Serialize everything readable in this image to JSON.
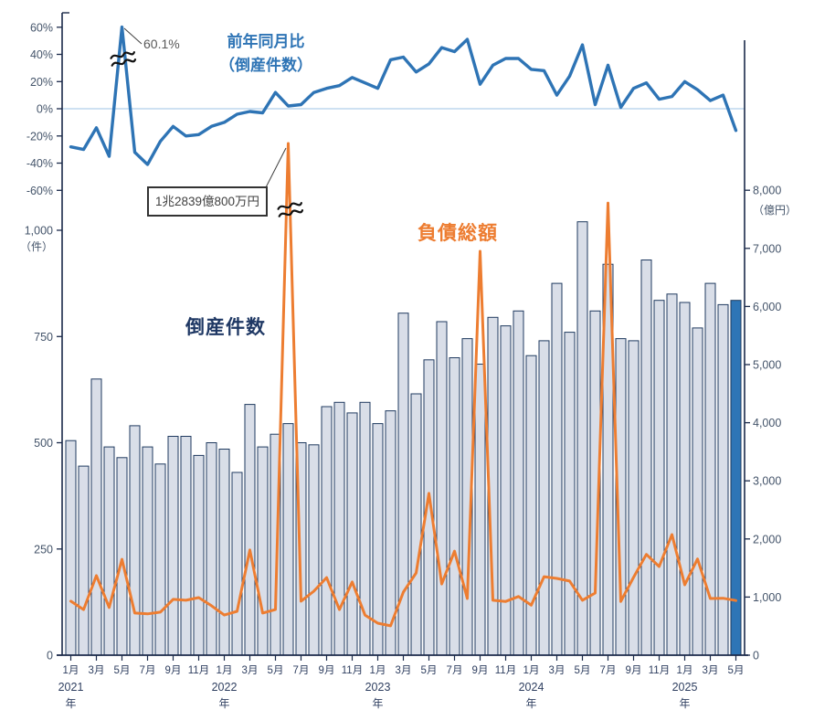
{
  "annotations": {
    "yoy_label_line1": "前年同月比",
    "yoy_label_line2": "（倒産件数）",
    "yoy_spike_label": "60.1%",
    "bankruptcy_count_label": "倒産件数",
    "liabilities_label": "負債総額",
    "liabilities_note": "1兆2839億800万円"
  },
  "axes": {
    "left_percent_ticks": [
      {
        "label": "60%",
        "value": 60
      },
      {
        "label": "40%",
        "value": 40
      },
      {
        "label": "20%",
        "value": 20
      },
      {
        "label": "0%",
        "value": 0
      },
      {
        "label": "-20%",
        "value": -20
      },
      {
        "label": "-40%",
        "value": -40
      },
      {
        "label": "-60%",
        "value": -60
      }
    ],
    "left_count_ticks": [
      {
        "label": "1,000",
        "value": 1000
      },
      {
        "label": "750",
        "value": 750
      },
      {
        "label": "500",
        "value": 500
      },
      {
        "label": "250",
        "value": 250
      },
      {
        "label": "0",
        "value": 0
      }
    ],
    "left_count_unit": "（件）",
    "right_amount_ticks": [
      {
        "label": "8,000",
        "value": 8000
      },
      {
        "label": "7,000",
        "value": 7000
      },
      {
        "label": "6,000",
        "value": 6000
      },
      {
        "label": "5,000",
        "value": 5000
      },
      {
        "label": "4,000",
        "value": 4000
      },
      {
        "label": "3,000",
        "value": 3000
      },
      {
        "label": "2,000",
        "value": 2000
      },
      {
        "label": "1,000",
        "value": 1000
      },
      {
        "label": "0",
        "value": 0
      }
    ],
    "right_amount_unit": "（億円）",
    "x_tick_labels": [
      "1月",
      "3月",
      "5月",
      "7月",
      "9月",
      "11月",
      "1月",
      "3月",
      "5月",
      "7月",
      "9月",
      "11月",
      "1月",
      "3月",
      "5月",
      "7月",
      "9月",
      "11月",
      "1月",
      "3月",
      "5月",
      "7月",
      "9月",
      "11月",
      "1月",
      "3月",
      "5月"
    ],
    "year_labels": [
      {
        "label": "2021",
        "unit": "年",
        "month_index": 0
      },
      {
        "label": "2022",
        "unit": "年",
        "month_index": 12
      },
      {
        "label": "2023",
        "unit": "年",
        "month_index": 24
      },
      {
        "label": "2024",
        "unit": "年",
        "month_index": 36
      },
      {
        "label": "2025",
        "unit": "年",
        "month_index": 48
      }
    ]
  },
  "colors": {
    "bar_fill": "#d9dee8",
    "bar_stroke": "#1f3a5f",
    "bar_highlight_fill": "#2e75b6",
    "yoy_line": "#2e74b5",
    "liabilities_line": "#ed7d31",
    "zero_line": "#bdd7ee",
    "axis": "#1b2a4a",
    "tick_text": "#44546a",
    "month_text": "#2f3f60"
  },
  "chart_data": {
    "type": "combo: bar + 2 lines",
    "categories": [
      "2021-01",
      "2021-02",
      "2021-03",
      "2021-04",
      "2021-05",
      "2021-06",
      "2021-07",
      "2021-08",
      "2021-09",
      "2021-10",
      "2021-11",
      "2021-12",
      "2022-01",
      "2022-02",
      "2022-03",
      "2022-04",
      "2022-05",
      "2022-06",
      "2022-07",
      "2022-08",
      "2022-09",
      "2022-10",
      "2022-11",
      "2022-12",
      "2023-01",
      "2023-02",
      "2023-03",
      "2023-04",
      "2023-05",
      "2023-06",
      "2023-07",
      "2023-08",
      "2023-09",
      "2023-10",
      "2023-11",
      "2023-12",
      "2024-01",
      "2024-02",
      "2024-03",
      "2024-04",
      "2024-05",
      "2024-06",
      "2024-07",
      "2024-08",
      "2024-09",
      "2024-10",
      "2024-11",
      "2024-12",
      "2025-01",
      "2025-02",
      "2025-03",
      "2025-04",
      "2025-05"
    ],
    "series": [
      {
        "name": "倒産件数",
        "type": "bar",
        "yaxis": "left_count",
        "unit": "件",
        "highlight_last": true,
        "values": [
          505,
          445,
          650,
          490,
          465,
          540,
          490,
          450,
          515,
          515,
          470,
          500,
          485,
          430,
          590,
          490,
          520,
          545,
          500,
          495,
          585,
          595,
          570,
          595,
          545,
          575,
          805,
          615,
          695,
          785,
          700,
          745,
          685,
          795,
          775,
          810,
          705,
          740,
          875,
          760,
          1020,
          810,
          920,
          745,
          740,
          930,
          835,
          850,
          830,
          770,
          875,
          825,
          835
        ]
      },
      {
        "name": "負債総額",
        "type": "line",
        "yaxis": "right_amount",
        "unit": "億円",
        "clipped_peak": "2022-06",
        "values": [
          930,
          785,
          1370,
          820,
          1650,
          725,
          710,
          740,
          960,
          945,
          990,
          850,
          690,
          755,
          1810,
          725,
          785,
          12839,
          930,
          1100,
          1335,
          785,
          1260,
          690,
          550,
          505,
          1085,
          1415,
          2785,
          1225,
          1790,
          975,
          6950,
          945,
          925,
          1010,
          860,
          1350,
          1320,
          1275,
          945,
          1070,
          7780,
          925,
          1340,
          1735,
          1525,
          2075,
          1210,
          1655,
          975,
          980,
          940
        ]
      },
      {
        "name": "前年同月比",
        "type": "line",
        "yaxis": "left_percent",
        "unit": "%",
        "annotated_peak": "2021-05",
        "values": [
          -28,
          -30,
          -14,
          -35,
          60.1,
          -32,
          -41,
          -24,
          -13,
          -20,
          -19,
          -13,
          -10,
          -4,
          -2,
          -3,
          12,
          2,
          3,
          12,
          15,
          17,
          23,
          19,
          15,
          36,
          38,
          27,
          33,
          45,
          42,
          51,
          18,
          32,
          37,
          37,
          29,
          28,
          10,
          24,
          47,
          3,
          32,
          1,
          15,
          19,
          7,
          9,
          20,
          14,
          6,
          10,
          -16
        ]
      }
    ],
    "left_percent_range": [
      -60,
      60
    ],
    "left_count_range": [
      0,
      1000
    ],
    "right_amount_range": [
      0,
      8000
    ],
    "grid": "none (single light 0% reference line)",
    "legend_position": "inline text annotations"
  }
}
